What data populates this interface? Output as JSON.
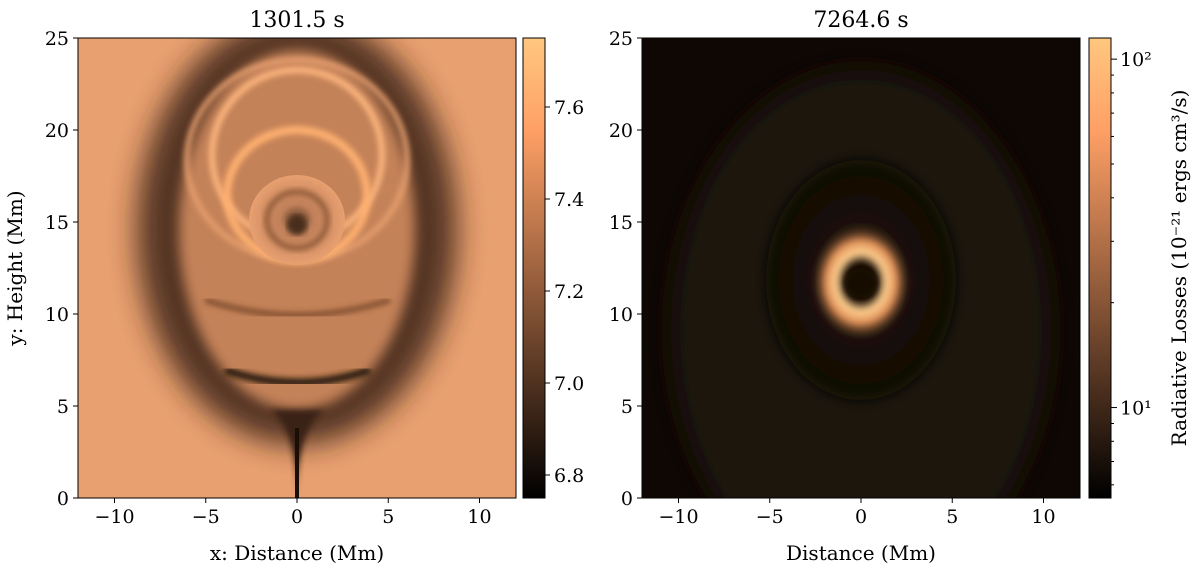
{
  "chart_data": [
    {
      "type": "heatmap",
      "title": "1301.5 s",
      "xlabel": "x: Distance (Mm)",
      "ylabel": "y: Height (Mm)",
      "xlim": [
        -12,
        12
      ],
      "ylim": [
        0,
        25
      ],
      "x_ticks": [
        -10,
        -5,
        0,
        5,
        10
      ],
      "x_tick_labels": [
        "−10",
        "−5",
        "0",
        "5",
        "10"
      ],
      "y_ticks": [
        0,
        5,
        10,
        15,
        20,
        25
      ],
      "y_tick_labels": [
        "0",
        "5",
        "10",
        "15",
        "20",
        "25"
      ],
      "colormap": "copper",
      "colorbar": {
        "scale": "linear",
        "range": [
          6.75,
          7.75
        ],
        "ticks": [
          6.8,
          7.0,
          7.2,
          7.4,
          7.6
        ],
        "tick_labels": [
          "6.8",
          "7.0",
          "7.2",
          "7.4",
          "7.6"
        ],
        "label": ""
      }
    },
    {
      "type": "heatmap",
      "title": "7264.6 s",
      "xlabel": "Distance (Mm)",
      "ylabel": "",
      "xlim": [
        -12,
        12
      ],
      "ylim": [
        0,
        25
      ],
      "x_ticks": [
        -10,
        -5,
        0,
        5,
        10
      ],
      "x_tick_labels": [
        "−10",
        "−5",
        "0",
        "5",
        "10"
      ],
      "y_ticks": [
        0,
        5,
        10,
        15,
        20,
        25
      ],
      "y_tick_labels": [
        "0",
        "5",
        "10",
        "15",
        "20",
        "25"
      ],
      "colormap": "copper",
      "colorbar": {
        "scale": "log",
        "range": [
          5.5,
          115
        ],
        "major_ticks": [
          10,
          100
        ],
        "tick_labels": [
          "10¹",
          "10²"
        ],
        "label": "Radiative Losses (10⁻²¹ ergs cm³/s)"
      }
    }
  ],
  "colors": {
    "copper_dark": "#000000",
    "copper_light": "#ffc77f"
  }
}
